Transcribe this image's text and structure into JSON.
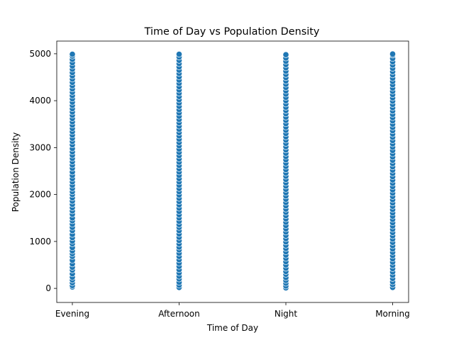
{
  "chart_data": {
    "type": "scatter",
    "title": "Time of Day vs Population Density",
    "xlabel": "Time of Day",
    "ylabel": "Population Density",
    "categories": [
      "Evening",
      "Afternoon",
      "Night",
      "Morning"
    ],
    "ylim": [
      -300,
      5270
    ],
    "yticks": [
      0,
      1000,
      2000,
      3000,
      4000,
      5000
    ],
    "grid": false,
    "legend": "none",
    "marker_color": "#1f77b4",
    "marker_edge_color": "#ffffff",
    "series": [
      {
        "category": "Evening",
        "values": [
          30,
          60,
          120,
          180,
          240,
          310,
          390,
          450,
          520,
          600,
          680,
          740,
          800,
          870,
          950,
          1010,
          1080,
          1150,
          1230,
          1300,
          1370,
          1440,
          1500,
          1580,
          1650,
          1720,
          1790,
          1860,
          1930,
          2000,
          2060,
          2130,
          2200,
          2270,
          2340,
          2410,
          2480,
          2560,
          2630,
          2700,
          2770,
          2840,
          2910,
          2980,
          3060,
          3130,
          3200,
          3270,
          3340,
          3410,
          3480,
          3550,
          3620,
          3690,
          3760,
          3830,
          3900,
          3970,
          4040,
          4110,
          4180,
          4250,
          4320,
          4390,
          4460,
          4530,
          4600,
          4670,
          4740,
          4810,
          4880,
          4950,
          4990
        ]
      },
      {
        "category": "Afternoon",
        "values": [
          20,
          70,
          130,
          200,
          260,
          330,
          400,
          470,
          540,
          610,
          680,
          750,
          820,
          880,
          950,
          1020,
          1090,
          1160,
          1230,
          1300,
          1360,
          1430,
          1500,
          1570,
          1640,
          1710,
          1780,
          1850,
          1920,
          1990,
          2060,
          2130,
          2200,
          2270,
          2340,
          2410,
          2480,
          2550,
          2620,
          2690,
          2760,
          2830,
          2900,
          2970,
          3040,
          3110,
          3180,
          3250,
          3320,
          3390,
          3460,
          3530,
          3600,
          3670,
          3740,
          3810,
          3880,
          3950,
          4020,
          4090,
          4160,
          4230,
          4300,
          4370,
          4440,
          4510,
          4580,
          4650,
          4720,
          4790,
          4860,
          4930,
          4990
        ]
      },
      {
        "category": "Night",
        "values": [
          10,
          50,
          110,
          170,
          230,
          300,
          360,
          430,
          500,
          570,
          640,
          710,
          780,
          850,
          920,
          990,
          1060,
          1130,
          1200,
          1270,
          1340,
          1410,
          1480,
          1550,
          1620,
          1690,
          1760,
          1830,
          1900,
          1970,
          2040,
          2110,
          2180,
          2250,
          2320,
          2390,
          2460,
          2530,
          2600,
          2670,
          2740,
          2810,
          2880,
          2950,
          3020,
          3090,
          3160,
          3230,
          3300,
          3370,
          3440,
          3510,
          3580,
          3650,
          3720,
          3790,
          3860,
          3930,
          4000,
          4070,
          4140,
          4210,
          4280,
          4350,
          4420,
          4490,
          4560,
          4630,
          4700,
          4770,
          4840,
          4910,
          4980
        ]
      },
      {
        "category": "Morning",
        "values": [
          20,
          80,
          140,
          210,
          280,
          350,
          420,
          490,
          560,
          630,
          700,
          770,
          840,
          910,
          980,
          1050,
          1120,
          1190,
          1260,
          1330,
          1400,
          1470,
          1540,
          1610,
          1680,
          1750,
          1820,
          1890,
          1960,
          2030,
          2100,
          2170,
          2240,
          2310,
          2380,
          2450,
          2520,
          2590,
          2660,
          2730,
          2800,
          2870,
          2940,
          3010,
          3080,
          3150,
          3220,
          3290,
          3360,
          3430,
          3500,
          3570,
          3640,
          3710,
          3780,
          3850,
          3920,
          3990,
          4060,
          4130,
          4200,
          4270,
          4340,
          4410,
          4480,
          4550,
          4620,
          4690,
          4760,
          4830,
          4900,
          4970,
          4995
        ]
      }
    ]
  }
}
